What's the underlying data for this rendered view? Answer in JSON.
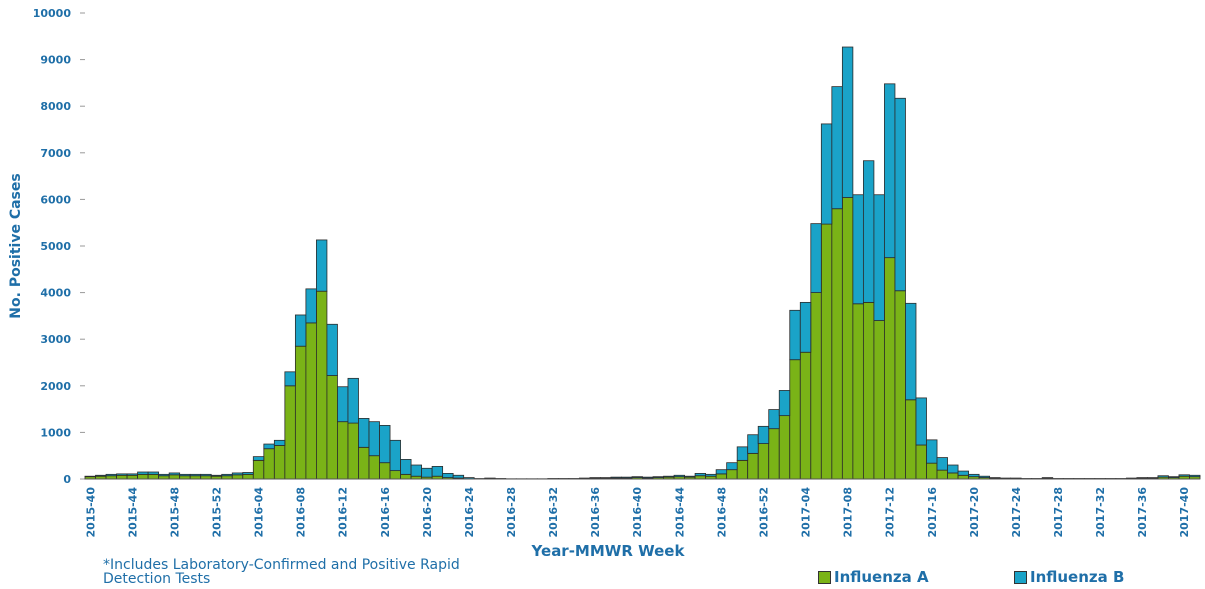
{
  "chart_data": {
    "type": "stacked-bar",
    "xlabel": "Year-MMWR Week",
    "ylabel": "No. Positive Cases",
    "note": "*Includes Laboratory-Confirmed and Positive Rapid Detection Tests",
    "categories": [
      "2015-40",
      null,
      null,
      null,
      "2015-44",
      null,
      null,
      null,
      "2015-48",
      null,
      null,
      null,
      "2015-52",
      null,
      null,
      null,
      "2016-04",
      null,
      null,
      null,
      "2016-08",
      null,
      null,
      null,
      "2016-12",
      null,
      null,
      null,
      "2016-16",
      null,
      null,
      null,
      "2016-20",
      null,
      null,
      null,
      "2016-24",
      null,
      null,
      null,
      "2016-28",
      null,
      null,
      null,
      "2016-32",
      null,
      null,
      null,
      "2016-36",
      null,
      null,
      null,
      "2016-40",
      null,
      null,
      null,
      "2016-44",
      null,
      null,
      null,
      "2016-48",
      null,
      null,
      null,
      "2016-52",
      null,
      null,
      null,
      "2017-04",
      null,
      null,
      null,
      "2017-08",
      null,
      null,
      null,
      "2017-12",
      null,
      null,
      null,
      "2017-16",
      null,
      null,
      null,
      "2017-20",
      null,
      null,
      null,
      "2017-24",
      null,
      null,
      null,
      "2017-28",
      null,
      null,
      null,
      "2017-32",
      null,
      null,
      null,
      "2017-36",
      null,
      null,
      null,
      "2017-40",
      null
    ],
    "series": [
      {
        "name": "Influenza A",
        "color": "#7ab317",
        "values": [
          50,
          60,
          70,
          80,
          80,
          100,
          100,
          70,
          90,
          70,
          70,
          70,
          60,
          70,
          90,
          100,
          400,
          650,
          720,
          2000,
          2850,
          3350,
          4030,
          2220,
          1230,
          1200,
          680,
          500,
          350,
          180,
          100,
          60,
          40,
          60,
          30,
          20,
          5,
          2,
          5,
          5,
          2,
          2,
          2,
          2,
          5,
          5,
          5,
          10,
          15,
          15,
          20,
          20,
          30,
          20,
          30,
          40,
          50,
          40,
          70,
          60,
          110,
          200,
          400,
          550,
          760,
          1080,
          1360,
          2560,
          2720,
          4000,
          5470,
          5800,
          6040,
          3760,
          3790,
          3400,
          4750,
          4040,
          1700,
          730,
          340,
          190,
          130,
          80,
          50,
          30,
          15,
          10,
          10,
          5,
          5,
          15,
          5,
          5,
          5,
          5,
          5,
          5,
          5,
          10,
          20,
          20,
          40,
          30,
          60,
          50
        ]
      },
      {
        "name": "Influenza B",
        "color": "#1aa3c8",
        "values": [
          10,
          20,
          30,
          30,
          30,
          50,
          50,
          30,
          40,
          30,
          30,
          30,
          20,
          30,
          40,
          40,
          80,
          100,
          110,
          300,
          670,
          730,
          1100,
          1100,
          750,
          960,
          620,
          730,
          800,
          650,
          320,
          240,
          190,
          210,
          90,
          60,
          25,
          8,
          15,
          5,
          3,
          3,
          3,
          3,
          5,
          5,
          5,
          10,
          15,
          15,
          20,
          20,
          20,
          20,
          20,
          20,
          30,
          20,
          50,
          40,
          90,
          150,
          290,
          400,
          370,
          410,
          540,
          1060,
          1070,
          1480,
          2150,
          2620,
          3230,
          2340,
          3040,
          2700,
          3730,
          4130,
          2070,
          1010,
          500,
          270,
          170,
          90,
          50,
          30,
          15,
          10,
          10,
          5,
          5,
          15,
          5,
          5,
          5,
          5,
          5,
          5,
          5,
          10,
          10,
          10,
          30,
          20,
          30,
          30
        ]
      }
    ],
    "ylim": [
      0,
      10000
    ],
    "yticks": [
      0,
      1000,
      2000,
      3000,
      4000,
      5000,
      6000,
      7000,
      8000,
      9000,
      10000
    ],
    "grid": false
  }
}
